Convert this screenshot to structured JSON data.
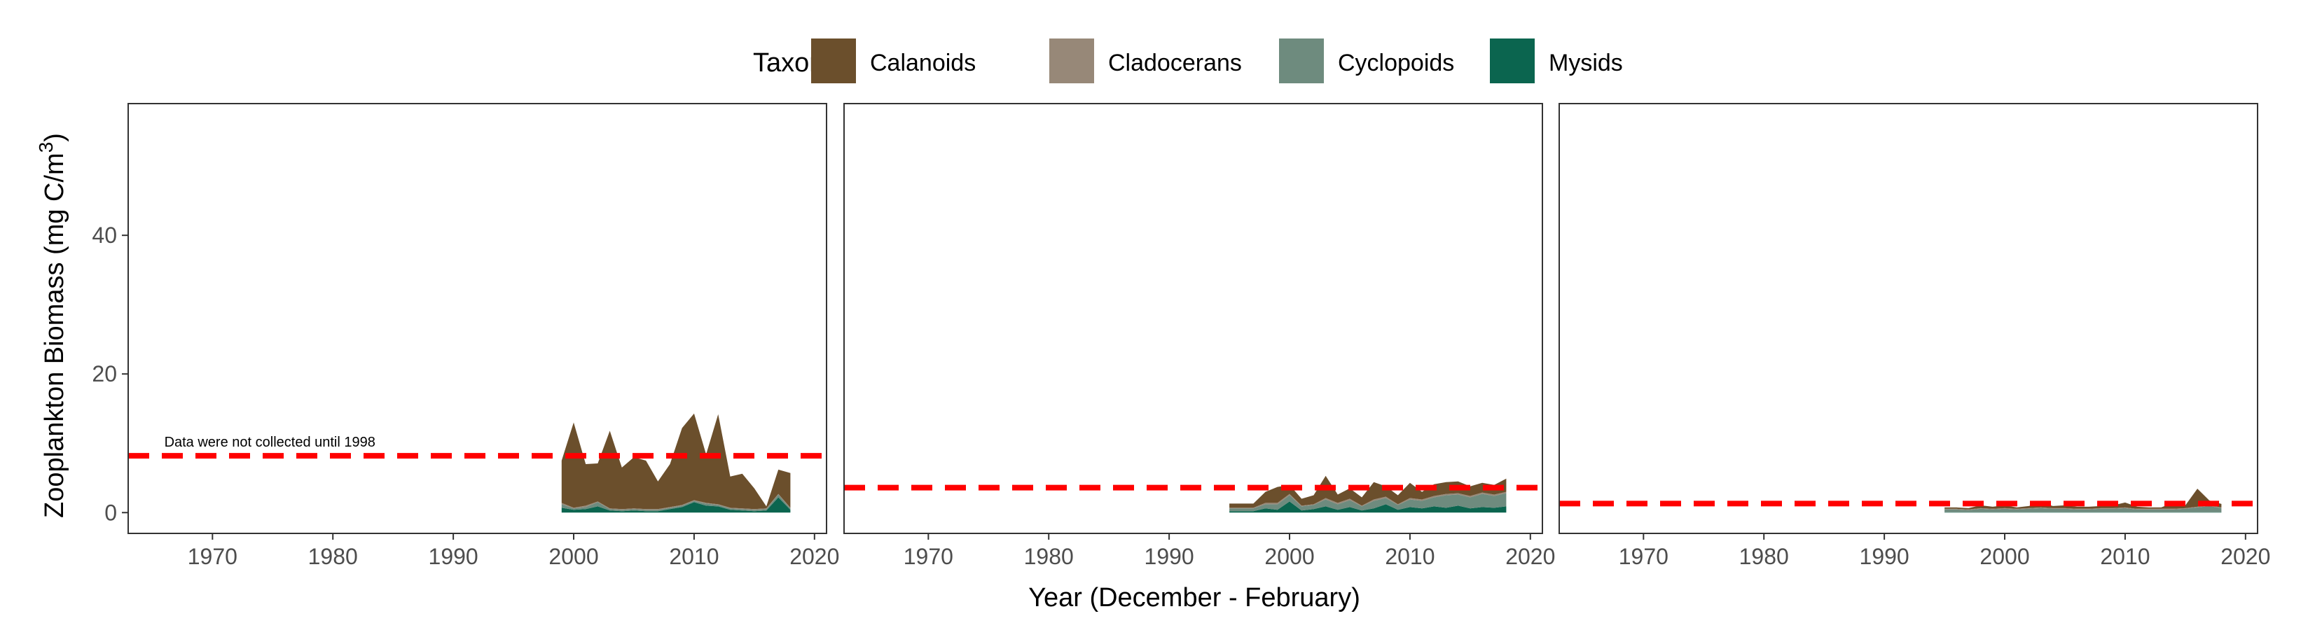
{
  "legend": {
    "title": "Taxon",
    "items": [
      {
        "name": "Calanoids",
        "color": "#6B4F2C"
      },
      {
        "name": "Cladocerans",
        "color": "#978878"
      },
      {
        "name": "Cyclopoids",
        "color": "#6E8B7E"
      },
      {
        "name": "Mysids",
        "color": "#0B654F"
      }
    ],
    "placement": "top-center"
  },
  "axes": {
    "ylabel": "Zooplankton Biomass (mg C/m",
    "ylabel_sup": "3",
    "ylabel_close": ")",
    "xlabel": "Year (December - February)"
  },
  "chart_data": [
    {
      "type": "area",
      "stacked": true,
      "xlim": [
        1963,
        2021
      ],
      "ylim": [
        -3,
        59
      ],
      "x_ticks": [
        1970,
        1980,
        1990,
        2000,
        2010,
        2020
      ],
      "y_ticks": [
        0,
        20,
        40
      ],
      "grid": false,
      "reference_line": {
        "y": 8.2,
        "color": "#FF0000",
        "style": "dashed"
      },
      "annotation": {
        "text": "Data were not collected until 1998",
        "x": 1966,
        "y": 9.5
      },
      "x": [
        1999,
        2000,
        2001,
        2002,
        2003,
        2004,
        2005,
        2006,
        2007,
        2008,
        2009,
        2010,
        2011,
        2012,
        2013,
        2014,
        2015,
        2016,
        2017,
        2018
      ],
      "series": [
        {
          "name": "Mysids",
          "values": [
            0.7,
            0.4,
            0.5,
            0.9,
            0.3,
            0.2,
            0.3,
            0.2,
            0.2,
            0.5,
            0.8,
            1.5,
            1.0,
            0.9,
            0.4,
            0.3,
            0.2,
            0.3,
            2.2,
            0.4
          ]
        },
        {
          "name": "Cyclopoids",
          "values": [
            0.5,
            0.2,
            0.3,
            0.6,
            0.2,
            0.2,
            0.2,
            0.2,
            0.2,
            0.2,
            0.2,
            0.2,
            0.3,
            0.2,
            0.2,
            0.2,
            0.2,
            0.2,
            0.4,
            0.2
          ]
        },
        {
          "name": "Cladocerans",
          "values": [
            0.2,
            0.1,
            0.2,
            0.1,
            0.1,
            0.1,
            0.1,
            0.1,
            0.1,
            0.1,
            0.1,
            0.1,
            0.1,
            0.1,
            0.1,
            0.1,
            0.1,
            0.1,
            0.1,
            0.1
          ]
        },
        {
          "name": "Calanoids",
          "values": [
            6.1,
            12.3,
            6.0,
            5.5,
            11.2,
            6.0,
            7.4,
            7.0,
            4.0,
            6.2,
            11.1,
            12.5,
            7.0,
            13.0,
            4.5,
            5.0,
            3.0,
            0.3,
            3.5,
            5.0
          ]
        }
      ]
    },
    {
      "type": "area",
      "stacked": true,
      "xlim": [
        1963,
        2021
      ],
      "ylim": [
        -3,
        59
      ],
      "x_ticks": [
        1970,
        1980,
        1990,
        2000,
        2010,
        2020
      ],
      "y_ticks": [
        0,
        20,
        40
      ],
      "grid": false,
      "reference_line": {
        "y": 3.6,
        "color": "#FF0000",
        "style": "dashed"
      },
      "x": [
        1995,
        1996,
        1997,
        1998,
        1999,
        2000,
        2001,
        2002,
        2003,
        2004,
        2005,
        2006,
        2007,
        2008,
        2009,
        2010,
        2011,
        2012,
        2013,
        2014,
        2015,
        2016,
        2017,
        2018
      ],
      "series": [
        {
          "name": "Mysids",
          "values": [
            0.2,
            0.2,
            0.2,
            0.6,
            0.4,
            1.6,
            0.3,
            0.5,
            0.9,
            0.4,
            0.8,
            0.3,
            0.6,
            1.2,
            0.4,
            0.8,
            0.6,
            0.9,
            0.7,
            1.0,
            0.6,
            0.8,
            0.7,
            0.9
          ]
        },
        {
          "name": "Cyclopoids",
          "values": [
            0.4,
            0.4,
            0.4,
            0.6,
            0.8,
            0.9,
            0.6,
            0.6,
            1.0,
            0.8,
            1.0,
            0.6,
            1.1,
            0.9,
            0.7,
            1.1,
            1.1,
            1.3,
            1.8,
            1.6,
            1.6,
            1.9,
            1.7,
            1.9
          ]
        },
        {
          "name": "Cladocerans",
          "values": [
            0.1,
            0.1,
            0.1,
            0.2,
            0.2,
            0.2,
            0.1,
            0.1,
            0.2,
            0.2,
            0.2,
            0.1,
            0.2,
            0.2,
            0.1,
            0.2,
            0.2,
            0.2,
            0.2,
            0.2,
            0.2,
            0.2,
            0.2,
            0.2
          ]
        },
        {
          "name": "Calanoids",
          "values": [
            0.6,
            0.6,
            0.6,
            1.6,
            2.3,
            1.3,
            1.0,
            1.3,
            3.2,
            1.2,
            1.5,
            1.2,
            2.5,
            1.5,
            1.3,
            2.2,
            1.1,
            1.7,
            1.7,
            1.7,
            1.4,
            1.4,
            1.4,
            1.9
          ]
        }
      ]
    },
    {
      "type": "area",
      "stacked": true,
      "xlim": [
        1963,
        2021
      ],
      "ylim": [
        -3,
        59
      ],
      "x_ticks": [
        1970,
        1980,
        1990,
        2000,
        2010,
        2020
      ],
      "y_ticks": [
        0,
        20,
        40
      ],
      "grid": false,
      "reference_line": {
        "y": 1.3,
        "color": "#FF0000",
        "style": "dashed"
      },
      "x": [
        1995,
        1996,
        1997,
        1998,
        1999,
        2000,
        2001,
        2002,
        2003,
        2004,
        2005,
        2006,
        2007,
        2008,
        2009,
        2010,
        2011,
        2012,
        2013,
        2014,
        2015,
        2016,
        2017,
        2018
      ],
      "series": [
        {
          "name": "Mysids",
          "values": [
            0.05,
            0.05,
            0.05,
            0.05,
            0.05,
            0.05,
            0.05,
            0.05,
            0.05,
            0.05,
            0.05,
            0.05,
            0.05,
            0.05,
            0.05,
            0.05,
            0.05,
            0.05,
            0.05,
            0.05,
            0.05,
            0.05,
            0.05,
            0.05
          ]
        },
        {
          "name": "Cyclopoids",
          "values": [
            0.4,
            0.4,
            0.3,
            0.5,
            0.4,
            0.5,
            0.4,
            0.5,
            0.6,
            0.5,
            0.5,
            0.4,
            0.4,
            0.5,
            0.5,
            0.6,
            0.4,
            0.4,
            0.4,
            0.4,
            0.5,
            0.7,
            0.9,
            0.6
          ]
        },
        {
          "name": "Cladocerans",
          "values": [
            0.1,
            0.1,
            0.1,
            0.1,
            0.1,
            0.1,
            0.1,
            0.1,
            0.1,
            0.1,
            0.1,
            0.1,
            0.1,
            0.1,
            0.1,
            0.1,
            0.1,
            0.1,
            0.1,
            0.1,
            0.1,
            0.1,
            0.1,
            0.1
          ]
        },
        {
          "name": "Calanoids",
          "values": [
            0.2,
            0.2,
            0.2,
            0.4,
            0.3,
            0.4,
            0.2,
            0.3,
            0.7,
            0.3,
            0.4,
            0.3,
            0.3,
            0.3,
            0.4,
            0.7,
            0.3,
            0.2,
            0.2,
            0.9,
            0.4,
            2.6,
            0.7,
            0.5
          ]
        }
      ]
    }
  ]
}
